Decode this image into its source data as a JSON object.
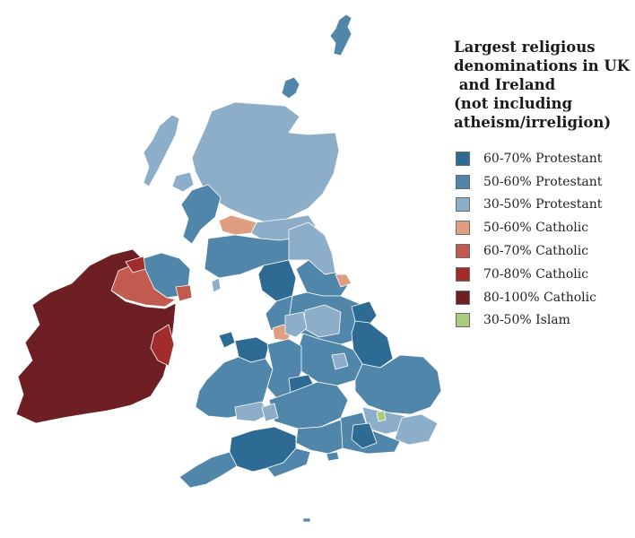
{
  "title_lines": [
    "Largest religious",
    "denominations in UK",
    " and Ireland",
    "(not including",
    "atheism/irreligion)"
  ],
  "legend": [
    {
      "label": "60-70% Protestant",
      "color": "#2e6b94"
    },
    {
      "label": "50-60% Protestant",
      "color": "#4f86aa"
    },
    {
      "label": "30-50% Protestant",
      "color": "#8daec8"
    },
    {
      "label": "50-60% Catholic",
      "color": "#e09e80"
    },
    {
      "label": "60-70% Catholic",
      "color": "#c25a4f"
    },
    {
      "label": "70-80% Catholic",
      "color": "#a12c2b"
    },
    {
      "label": "80-100% Catholic",
      "color": "#6e1f23"
    },
    {
      "label": "30-50% Islam",
      "color": "#a8cc7c"
    }
  ]
}
